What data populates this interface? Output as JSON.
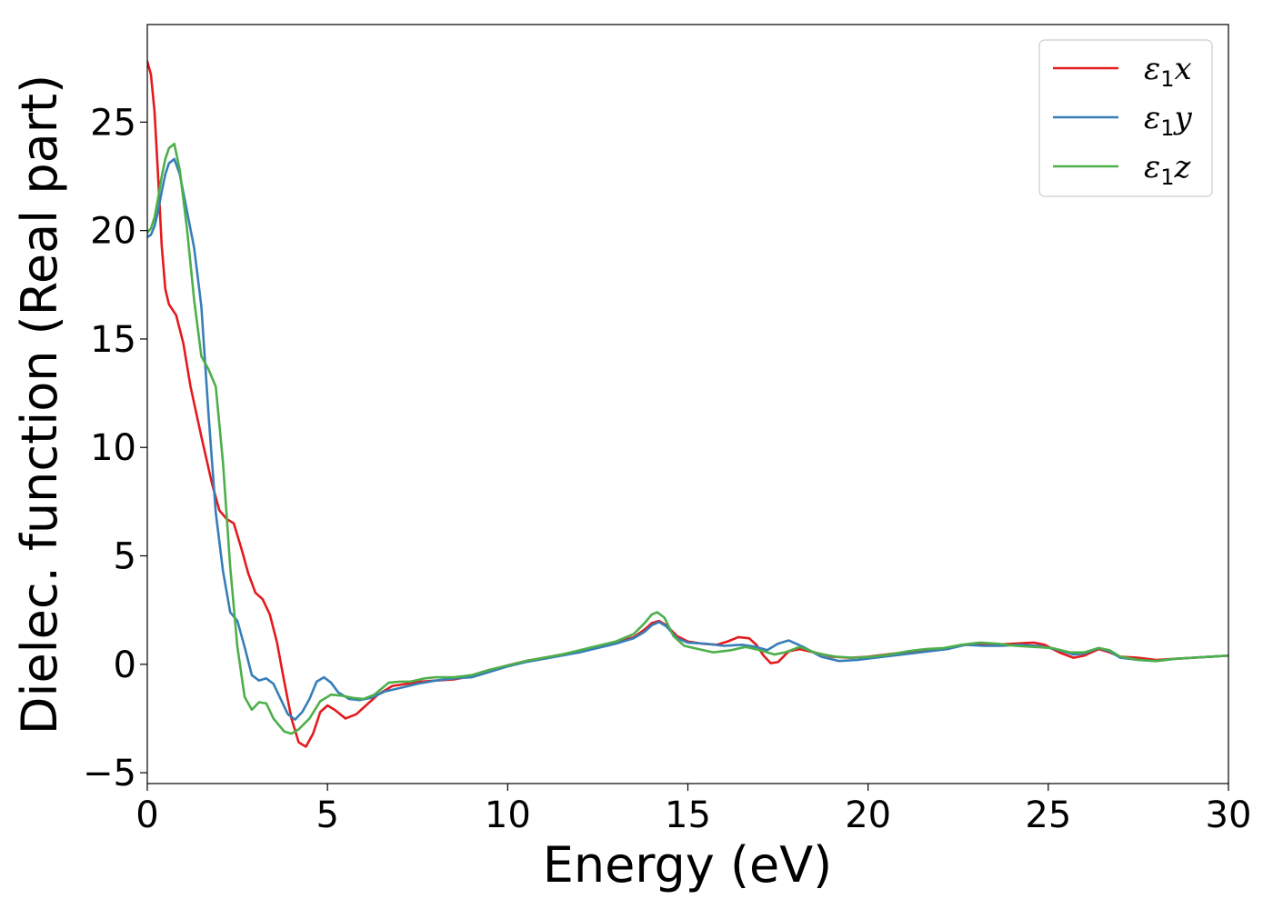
{
  "chart_data": {
    "type": "line",
    "title": "",
    "xlabel": "Energy (eV)",
    "ylabel": "Dielec. function (Real part)",
    "xlim": [
      0,
      30
    ],
    "ylim": [
      -5.5,
      29.5
    ],
    "xticks": [
      0,
      5,
      10,
      15,
      20,
      25,
      30
    ],
    "yticks": [
      -5,
      0,
      5,
      10,
      15,
      20,
      25
    ],
    "xtick_labels": [
      "0",
      "5",
      "10",
      "15",
      "20",
      "25",
      "30"
    ],
    "ytick_labels": [
      "−5",
      "0",
      "5",
      "10",
      "15",
      "20",
      "25"
    ],
    "grid": false,
    "legend_position": "top-right",
    "series": [
      {
        "name": "ε1x",
        "legend_main": "ε",
        "legend_sub": "1",
        "legend_tail": "x",
        "color": "#e41a1c",
        "points": [
          [
            0,
            27.8
          ],
          [
            0.1,
            27.2
          ],
          [
            0.2,
            25.5
          ],
          [
            0.3,
            22.5
          ],
          [
            0.4,
            19.3
          ],
          [
            0.5,
            17.3
          ],
          [
            0.6,
            16.6
          ],
          [
            0.8,
            16.1
          ],
          [
            1.0,
            14.8
          ],
          [
            1.2,
            12.8
          ],
          [
            1.5,
            10.5
          ],
          [
            1.8,
            8.3
          ],
          [
            2.0,
            7.1
          ],
          [
            2.2,
            6.7
          ],
          [
            2.4,
            6.5
          ],
          [
            2.6,
            5.4
          ],
          [
            2.8,
            4.2
          ],
          [
            3.0,
            3.3
          ],
          [
            3.2,
            3.0
          ],
          [
            3.4,
            2.3
          ],
          [
            3.6,
            1.0
          ],
          [
            3.8,
            -0.8
          ],
          [
            4.0,
            -2.5
          ],
          [
            4.2,
            -3.6
          ],
          [
            4.4,
            -3.8
          ],
          [
            4.6,
            -3.2
          ],
          [
            4.8,
            -2.2
          ],
          [
            5.0,
            -1.9
          ],
          [
            5.2,
            -2.1
          ],
          [
            5.5,
            -2.5
          ],
          [
            5.8,
            -2.3
          ],
          [
            6.0,
            -2.0
          ],
          [
            6.4,
            -1.4
          ],
          [
            6.8,
            -1.0
          ],
          [
            7.2,
            -0.9
          ],
          [
            7.6,
            -0.8
          ],
          [
            8.0,
            -0.75
          ],
          [
            8.5,
            -0.7
          ],
          [
            9.0,
            -0.55
          ],
          [
            9.5,
            -0.3
          ],
          [
            10.0,
            -0.05
          ],
          [
            10.5,
            0.15
          ],
          [
            11.0,
            0.3
          ],
          [
            11.5,
            0.45
          ],
          [
            12.0,
            0.6
          ],
          [
            12.5,
            0.8
          ],
          [
            13.0,
            1.0
          ],
          [
            13.5,
            1.25
          ],
          [
            13.8,
            1.6
          ],
          [
            14.0,
            1.9
          ],
          [
            14.2,
            2.0
          ],
          [
            14.4,
            1.8
          ],
          [
            14.7,
            1.3
          ],
          [
            15.0,
            1.05
          ],
          [
            15.4,
            0.95
          ],
          [
            15.8,
            0.9
          ],
          [
            16.1,
            1.05
          ],
          [
            16.4,
            1.25
          ],
          [
            16.7,
            1.2
          ],
          [
            16.9,
            0.9
          ],
          [
            17.1,
            0.4
          ],
          [
            17.3,
            0.05
          ],
          [
            17.5,
            0.1
          ],
          [
            17.8,
            0.6
          ],
          [
            18.1,
            0.7
          ],
          [
            18.5,
            0.55
          ],
          [
            19.0,
            0.35
          ],
          [
            19.5,
            0.3
          ],
          [
            20.0,
            0.35
          ],
          [
            20.5,
            0.45
          ],
          [
            21.0,
            0.55
          ],
          [
            21.5,
            0.65
          ],
          [
            22.0,
            0.7
          ],
          [
            22.5,
            0.85
          ],
          [
            23.0,
            0.95
          ],
          [
            23.5,
            0.9
          ],
          [
            24.0,
            0.95
          ],
          [
            24.6,
            1.0
          ],
          [
            24.9,
            0.9
          ],
          [
            25.3,
            0.55
          ],
          [
            25.7,
            0.3
          ],
          [
            26.0,
            0.4
          ],
          [
            26.4,
            0.7
          ],
          [
            26.7,
            0.55
          ],
          [
            27.0,
            0.35
          ],
          [
            27.5,
            0.3
          ],
          [
            28.0,
            0.2
          ],
          [
            28.5,
            0.25
          ],
          [
            29.0,
            0.3
          ],
          [
            29.5,
            0.35
          ],
          [
            30.0,
            0.4
          ]
        ]
      },
      {
        "name": "ε1y",
        "legend_main": "ε",
        "legend_sub": "1",
        "legend_tail": "y",
        "color": "#377eb8",
        "points": [
          [
            0,
            19.7
          ],
          [
            0.1,
            19.8
          ],
          [
            0.2,
            20.2
          ],
          [
            0.3,
            20.9
          ],
          [
            0.4,
            21.8
          ],
          [
            0.5,
            22.6
          ],
          [
            0.6,
            23.1
          ],
          [
            0.75,
            23.3
          ],
          [
            0.9,
            22.6
          ],
          [
            1.1,
            20.9
          ],
          [
            1.3,
            19.2
          ],
          [
            1.5,
            16.5
          ],
          [
            1.7,
            11.5
          ],
          [
            1.9,
            7.0
          ],
          [
            2.1,
            4.3
          ],
          [
            2.3,
            2.4
          ],
          [
            2.5,
            2.0
          ],
          [
            2.7,
            0.8
          ],
          [
            2.9,
            -0.5
          ],
          [
            3.1,
            -0.75
          ],
          [
            3.3,
            -0.65
          ],
          [
            3.5,
            -0.9
          ],
          [
            3.7,
            -1.6
          ],
          [
            3.9,
            -2.3
          ],
          [
            4.1,
            -2.55
          ],
          [
            4.3,
            -2.2
          ],
          [
            4.5,
            -1.6
          ],
          [
            4.7,
            -0.8
          ],
          [
            4.9,
            -0.6
          ],
          [
            5.1,
            -0.85
          ],
          [
            5.3,
            -1.3
          ],
          [
            5.6,
            -1.6
          ],
          [
            5.9,
            -1.65
          ],
          [
            6.2,
            -1.55
          ],
          [
            6.6,
            -1.25
          ],
          [
            7.0,
            -1.1
          ],
          [
            7.5,
            -0.9
          ],
          [
            8.0,
            -0.75
          ],
          [
            8.5,
            -0.65
          ],
          [
            9.0,
            -0.6
          ],
          [
            9.5,
            -0.35
          ],
          [
            10.0,
            -0.1
          ],
          [
            10.5,
            0.1
          ],
          [
            11.0,
            0.25
          ],
          [
            11.5,
            0.4
          ],
          [
            12.0,
            0.55
          ],
          [
            12.5,
            0.75
          ],
          [
            13.0,
            0.95
          ],
          [
            13.5,
            1.2
          ],
          [
            13.8,
            1.5
          ],
          [
            14.0,
            1.8
          ],
          [
            14.2,
            1.95
          ],
          [
            14.4,
            1.75
          ],
          [
            14.7,
            1.2
          ],
          [
            15.0,
            1.0
          ],
          [
            15.5,
            0.95
          ],
          [
            16.0,
            0.85
          ],
          [
            16.5,
            0.9
          ],
          [
            16.9,
            0.8
          ],
          [
            17.2,
            0.65
          ],
          [
            17.5,
            0.95
          ],
          [
            17.8,
            1.1
          ],
          [
            18.2,
            0.8
          ],
          [
            18.7,
            0.35
          ],
          [
            19.2,
            0.15
          ],
          [
            19.7,
            0.2
          ],
          [
            20.2,
            0.3
          ],
          [
            20.7,
            0.4
          ],
          [
            21.2,
            0.5
          ],
          [
            21.7,
            0.6
          ],
          [
            22.2,
            0.7
          ],
          [
            22.7,
            0.9
          ],
          [
            23.2,
            0.85
          ],
          [
            23.7,
            0.85
          ],
          [
            24.2,
            0.9
          ],
          [
            24.7,
            0.85
          ],
          [
            25.2,
            0.7
          ],
          [
            25.7,
            0.45
          ],
          [
            26.0,
            0.5
          ],
          [
            26.4,
            0.75
          ],
          [
            26.7,
            0.6
          ],
          [
            27.0,
            0.3
          ],
          [
            27.5,
            0.2
          ],
          [
            28.0,
            0.15
          ],
          [
            28.5,
            0.25
          ],
          [
            29.0,
            0.3
          ],
          [
            29.5,
            0.35
          ],
          [
            30.0,
            0.4
          ]
        ]
      },
      {
        "name": "ε1z",
        "legend_main": "ε",
        "legend_sub": "1",
        "legend_tail": "z",
        "color": "#4daf4a",
        "points": [
          [
            0,
            19.9
          ],
          [
            0.1,
            20.1
          ],
          [
            0.2,
            20.6
          ],
          [
            0.3,
            21.5
          ],
          [
            0.4,
            22.5
          ],
          [
            0.5,
            23.3
          ],
          [
            0.6,
            23.8
          ],
          [
            0.75,
            24.0
          ],
          [
            0.9,
            22.8
          ],
          [
            1.1,
            20.1
          ],
          [
            1.3,
            16.8
          ],
          [
            1.5,
            14.2
          ],
          [
            1.7,
            13.6
          ],
          [
            1.9,
            12.8
          ],
          [
            2.1,
            9.3
          ],
          [
            2.3,
            4.5
          ],
          [
            2.5,
            0.8
          ],
          [
            2.7,
            -1.5
          ],
          [
            2.9,
            -2.1
          ],
          [
            3.1,
            -1.75
          ],
          [
            3.3,
            -1.8
          ],
          [
            3.5,
            -2.5
          ],
          [
            3.8,
            -3.1
          ],
          [
            4.0,
            -3.2
          ],
          [
            4.2,
            -3.0
          ],
          [
            4.5,
            -2.5
          ],
          [
            4.8,
            -1.7
          ],
          [
            5.1,
            -1.4
          ],
          [
            5.4,
            -1.45
          ],
          [
            5.7,
            -1.55
          ],
          [
            6.0,
            -1.6
          ],
          [
            6.3,
            -1.4
          ],
          [
            6.7,
            -0.85
          ],
          [
            7.0,
            -0.8
          ],
          [
            7.3,
            -0.8
          ],
          [
            7.7,
            -0.65
          ],
          [
            8.0,
            -0.6
          ],
          [
            8.5,
            -0.6
          ],
          [
            9.0,
            -0.5
          ],
          [
            9.5,
            -0.25
          ],
          [
            10.0,
            -0.05
          ],
          [
            10.5,
            0.15
          ],
          [
            11.0,
            0.3
          ],
          [
            11.5,
            0.45
          ],
          [
            12.0,
            0.65
          ],
          [
            12.5,
            0.85
          ],
          [
            13.0,
            1.05
          ],
          [
            13.5,
            1.4
          ],
          [
            13.8,
            1.9
          ],
          [
            14.0,
            2.3
          ],
          [
            14.15,
            2.4
          ],
          [
            14.35,
            2.15
          ],
          [
            14.6,
            1.3
          ],
          [
            14.9,
            0.85
          ],
          [
            15.3,
            0.7
          ],
          [
            15.7,
            0.55
          ],
          [
            16.2,
            0.65
          ],
          [
            16.6,
            0.8
          ],
          [
            17.0,
            0.65
          ],
          [
            17.4,
            0.45
          ],
          [
            17.7,
            0.55
          ],
          [
            18.1,
            0.8
          ],
          [
            18.6,
            0.5
          ],
          [
            19.1,
            0.35
          ],
          [
            19.6,
            0.3
          ],
          [
            20.1,
            0.35
          ],
          [
            20.6,
            0.45
          ],
          [
            21.1,
            0.6
          ],
          [
            21.6,
            0.7
          ],
          [
            22.1,
            0.75
          ],
          [
            22.6,
            0.9
          ],
          [
            23.1,
            1.0
          ],
          [
            23.6,
            0.95
          ],
          [
            24.1,
            0.85
          ],
          [
            24.6,
            0.8
          ],
          [
            25.1,
            0.75
          ],
          [
            25.6,
            0.55
          ],
          [
            26.0,
            0.55
          ],
          [
            26.4,
            0.75
          ],
          [
            26.7,
            0.65
          ],
          [
            27.0,
            0.35
          ],
          [
            27.5,
            0.2
          ],
          [
            28.0,
            0.15
          ],
          [
            28.5,
            0.25
          ],
          [
            29.0,
            0.3
          ],
          [
            29.5,
            0.35
          ],
          [
            30.0,
            0.4
          ]
        ]
      }
    ]
  }
}
